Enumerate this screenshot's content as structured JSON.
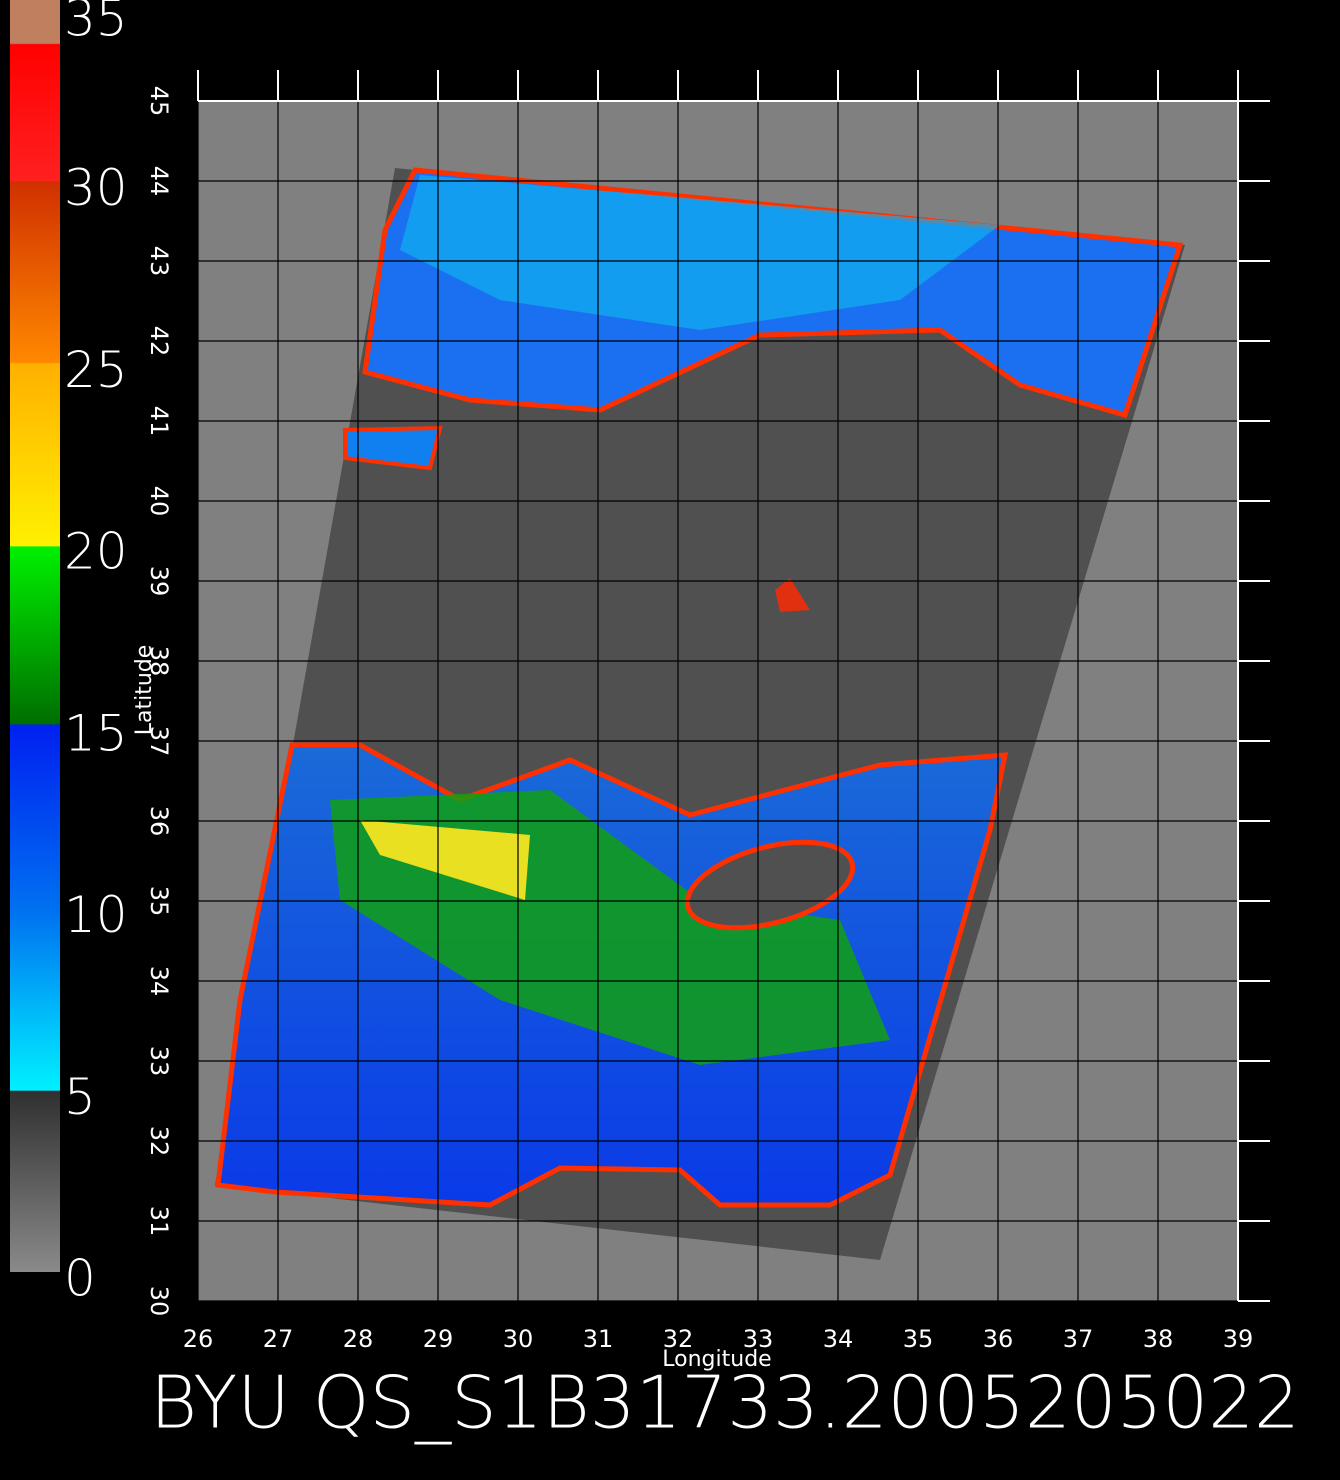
{
  "map": {
    "xlim": [
      26,
      39
    ],
    "ylim": [
      30,
      45
    ],
    "xticks": [
      26,
      27,
      28,
      29,
      30,
      31,
      32,
      33,
      34,
      35,
      36,
      37,
      38,
      39
    ],
    "yticks": [
      30,
      31,
      32,
      33,
      34,
      35,
      36,
      37,
      38,
      39,
      40,
      41,
      42,
      43,
      44,
      45
    ],
    "x_label": "Longitude",
    "y_label": "Latitude"
  },
  "colorbar": {
    "lim": [
      0,
      35
    ],
    "ticks": [
      0,
      5,
      10,
      15,
      20,
      25,
      30,
      35
    ]
  },
  "caption": "BYU QS_S1B31733.2005205022"
}
